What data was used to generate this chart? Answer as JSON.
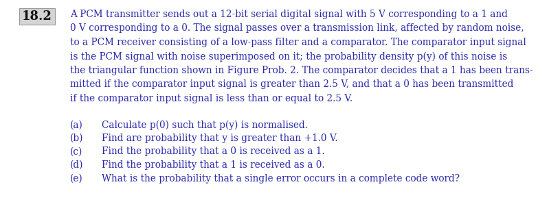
{
  "problem_number": "18.2",
  "background_color": "#ffffff",
  "box_facecolor": "#d4d4d4",
  "box_edgecolor": "#999999",
  "text_color": "#2a2aaa",
  "number_color": "#111111",
  "main_lines": [
    "A PCM transmitter sends out a 12-bit serial digital signal with 5 V corresponding to a 1 and",
    "0 V corresponding to a 0. The signal passes over a transmission link, affected by random noise,",
    "to a PCM receiver consisting of a low-pass filter and a comparator. The comparator input signal",
    "is the PCM signal with noise superimposed on it; the probability density p(y) of this noise is",
    "the triangular function shown in Figure Prob. 2. The comparator decides that a 1 has been trans-",
    "mitted if the comparator input signal is greater than 2.5 V, and that a 0 has been transmitted",
    "if the comparator input signal is less than or equal to 2.5 V."
  ],
  "sub_labels": [
    "(a)",
    "(b)",
    "(c)",
    "(d)",
    "(e)"
  ],
  "sub_texts": [
    "Calculate p(0) such that p(y) is normalised.",
    "Find are probability that y is greater than +1.0 V.",
    "Find the probability that a 0 is received as a 1.",
    "Find the probability that a 1 is received as a 0.",
    "What is the probability that a single error occurs in a complete code word?"
  ],
  "font_size_number": 13,
  "font_size_main": 9.8,
  "font_size_sub": 9.8,
  "fig_width": 8.15,
  "fig_height": 3.14,
  "dpi": 100
}
